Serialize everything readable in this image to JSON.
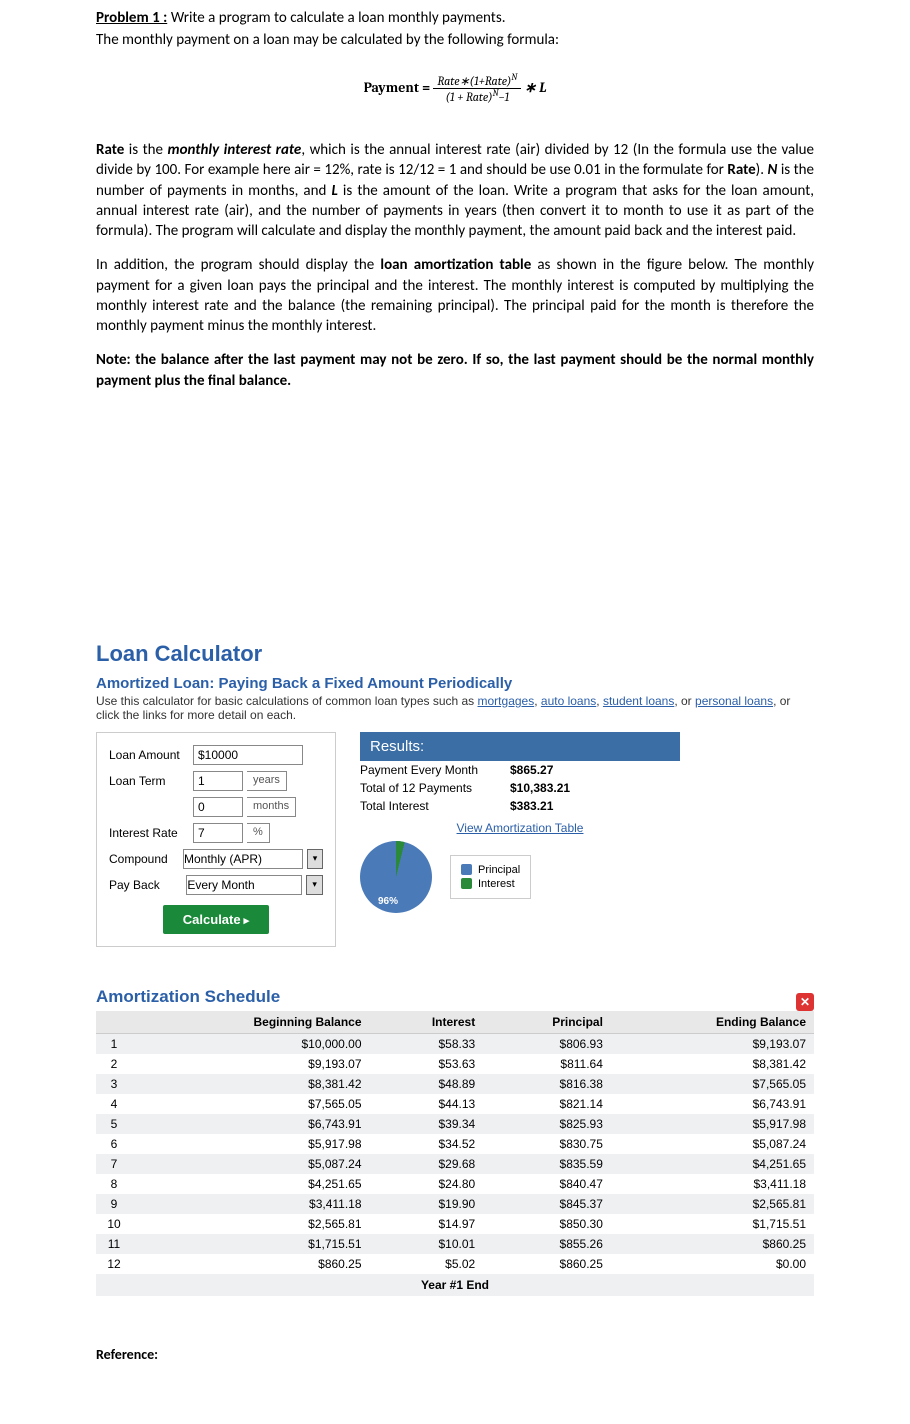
{
  "problem": {
    "label": "Problem 1 :",
    "prompt": " Write a program to calculate a loan monthly payments.",
    "formula_desc": "The monthly payment on a loan may be calculated by the following formula:",
    "payment_word": "Payment = ",
    "numerator": "Rate∗(1+Rate)",
    "num_sup": "N",
    "denominator": "(1 + Rate)",
    "den_sup": "N",
    "den_tail": "−1",
    "times_L": " ∗ L"
  },
  "para1_a": "Rate",
  "para1_b": " is the ",
  "para1_c": "monthly interest rate",
  "para1_d": ", which is the annual interest rate (air) divided by 12 (In the formula use the value divide by 100. For example here air = 12%, rate is 12/12 = 1 and should be use 0.01 in the formulate for ",
  "para1_e": "Rate",
  "para1_f": "). ",
  "para1_g": "N",
  "para1_h": " is the number of payments in months, and ",
  "para1_i": "L",
  "para1_j": " is the amount of the loan. Write a program that asks for the loan amount, annual interest rate (air), and the number of payments in years (then convert it to month to use it as part of the formula). The program will calculate and display the monthly payment, the amount paid back and the interest paid.",
  "para2_a": "In addition, the program should display the ",
  "para2_b": "loan amortization table",
  "para2_c": " as shown in the figure below. The monthly payment for a given loan pays the principal and the interest. The monthly interest is computed by multiplying the monthly interest rate and the balance (the remaining principal). The principal paid for the month is therefore the monthly payment minus the monthly interest.",
  "note": "Note: the balance after the last payment may not be zero. If so, the last payment should be the normal monthly payment plus the final balance.",
  "calc": {
    "heading": "Loan Calculator",
    "sub": "Amortized Loan: Paying Back a Fixed Amount Periodically",
    "desc_a": "Use this calculator for basic calculations of common loan types such as ",
    "link1": "mortgages",
    "link2": "auto loans",
    "link3": "student loans",
    "link4": "personal loans",
    "desc_b": ", or click the links for more detail on each.",
    "form": {
      "loan_amount_label": "Loan Amount",
      "loan_amount_value": "$10000",
      "loan_term_label": "Loan Term",
      "years_value": "1",
      "years_unit": "years",
      "months_value": "0",
      "months_unit": "months",
      "rate_label": "Interest Rate",
      "rate_value": "7",
      "rate_unit": "%",
      "compound_label": "Compound",
      "compound_value": "Monthly (APR)",
      "payback_label": "Pay Back",
      "payback_value": "Every Month",
      "calc_btn": "Calculate"
    },
    "results": {
      "head": "Results:",
      "r1l": "Payment Every Month",
      "r1v": "$865.27",
      "r2l": "Total of 12 Payments",
      "r2v": "$10,383.21",
      "r3l": "Total Interest",
      "r3v": "$383.21",
      "view": "View Amortization Table",
      "pie_pct": "96%",
      "legend_p": "Principal",
      "legend_p_color": "#4a7ab8",
      "legend_i": "Interest",
      "legend_i_color": "#2a8a3a"
    }
  },
  "am": {
    "heading": "Amortization Schedule",
    "cols": [
      "",
      "Beginning Balance",
      "Interest",
      "Principal",
      "Ending Balance"
    ],
    "rows": [
      [
        "1",
        "$10,000.00",
        "$58.33",
        "$806.93",
        "$9,193.07"
      ],
      [
        "2",
        "$9,193.07",
        "$53.63",
        "$811.64",
        "$8,381.42"
      ],
      [
        "3",
        "$8,381.42",
        "$48.89",
        "$816.38",
        "$7,565.05"
      ],
      [
        "4",
        "$7,565.05",
        "$44.13",
        "$821.14",
        "$6,743.91"
      ],
      [
        "5",
        "$6,743.91",
        "$39.34",
        "$825.93",
        "$5,917.98"
      ],
      [
        "6",
        "$5,917.98",
        "$34.52",
        "$830.75",
        "$5,087.24"
      ],
      [
        "7",
        "$5,087.24",
        "$29.68",
        "$835.59",
        "$4,251.65"
      ],
      [
        "8",
        "$4,251.65",
        "$24.80",
        "$840.47",
        "$3,411.18"
      ],
      [
        "9",
        "$3,411.18",
        "$19.90",
        "$845.37",
        "$2,565.81"
      ],
      [
        "10",
        "$2,565.81",
        "$14.97",
        "$850.30",
        "$1,715.51"
      ],
      [
        "11",
        "$1,715.51",
        "$10.01",
        "$855.26",
        "$860.25"
      ],
      [
        "12",
        "$860.25",
        "$5.02",
        "$860.25",
        "$0.00"
      ]
    ],
    "year_end": "Year #1 End"
  },
  "reference": "Reference:"
}
